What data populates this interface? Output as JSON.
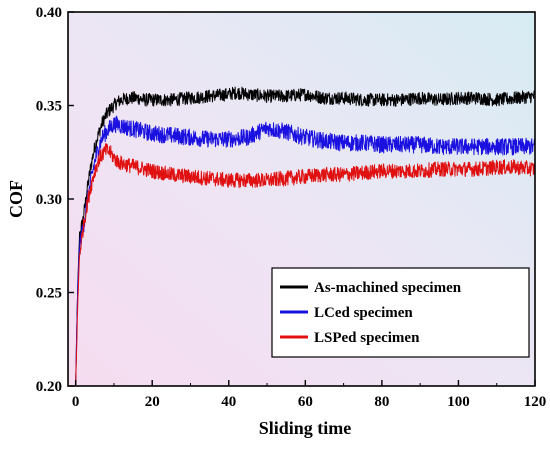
{
  "chart_data": {
    "type": "line",
    "xlabel": "Sliding time",
    "ylabel": "COF",
    "xlim": [
      -2,
      120
    ],
    "ylim": [
      0.2,
      0.4
    ],
    "x_ticks": [
      "0",
      "20",
      "40",
      "60",
      "80",
      "100",
      "120"
    ],
    "y_ticks": [
      "0.20",
      "0.25",
      "0.30",
      "0.35",
      "0.40"
    ],
    "grid": false,
    "legend_position": "lower-right",
    "background": "pink-to-light-blue gradient",
    "series": [
      {
        "name": "As-machined specimen",
        "color": "#000000",
        "x": [
          0,
          0.5,
          1,
          2,
          3,
          4,
          5,
          6,
          7,
          8,
          9,
          10,
          11,
          12,
          14,
          16,
          18,
          20,
          25,
          30,
          35,
          40,
          42,
          45,
          50,
          55,
          60,
          65,
          70,
          75,
          80,
          85,
          90,
          95,
          100,
          105,
          110,
          115,
          120
        ],
        "y": [
          0.2,
          0.25,
          0.28,
          0.29,
          0.305,
          0.318,
          0.328,
          0.335,
          0.341,
          0.345,
          0.348,
          0.35,
          0.352,
          0.353,
          0.354,
          0.354,
          0.353,
          0.353,
          0.353,
          0.354,
          0.355,
          0.356,
          0.357,
          0.356,
          0.355,
          0.355,
          0.356,
          0.354,
          0.354,
          0.353,
          0.353,
          0.353,
          0.354,
          0.353,
          0.354,
          0.354,
          0.353,
          0.354,
          0.355
        ]
      },
      {
        "name": "LCed specimen",
        "color": "#1a10e0",
        "x": [
          0,
          0.5,
          1,
          2,
          3,
          4,
          5,
          6,
          7,
          8,
          9,
          10,
          11,
          12,
          14,
          16,
          18,
          20,
          25,
          30,
          35,
          40,
          45,
          48,
          50,
          52,
          55,
          58,
          60,
          65,
          70,
          75,
          80,
          85,
          90,
          95,
          100,
          105,
          110,
          115,
          120
        ],
        "y": [
          0.2,
          0.25,
          0.275,
          0.285,
          0.298,
          0.31,
          0.32,
          0.328,
          0.333,
          0.336,
          0.338,
          0.34,
          0.34,
          0.339,
          0.338,
          0.337,
          0.336,
          0.335,
          0.334,
          0.333,
          0.332,
          0.332,
          0.333,
          0.336,
          0.338,
          0.337,
          0.336,
          0.334,
          0.333,
          0.331,
          0.33,
          0.33,
          0.329,
          0.329,
          0.329,
          0.328,
          0.328,
          0.328,
          0.328,
          0.328,
          0.328
        ]
      },
      {
        "name": "LSPed specimen",
        "color": "#e01010",
        "x": [
          0,
          0.5,
          1,
          2,
          3,
          4,
          5,
          6,
          7,
          8,
          9,
          10,
          11,
          12,
          14,
          16,
          18,
          20,
          25,
          30,
          35,
          40,
          45,
          50,
          55,
          60,
          65,
          70,
          75,
          80,
          85,
          90,
          95,
          100,
          105,
          110,
          115,
          120
        ],
        "y": [
          0.2,
          0.24,
          0.27,
          0.285,
          0.297,
          0.307,
          0.315,
          0.321,
          0.324,
          0.326,
          0.325,
          0.322,
          0.32,
          0.319,
          0.318,
          0.317,
          0.316,
          0.315,
          0.313,
          0.312,
          0.311,
          0.31,
          0.31,
          0.31,
          0.311,
          0.312,
          0.313,
          0.313,
          0.314,
          0.315,
          0.315,
          0.315,
          0.316,
          0.316,
          0.316,
          0.317,
          0.317,
          0.316
        ]
      }
    ]
  }
}
